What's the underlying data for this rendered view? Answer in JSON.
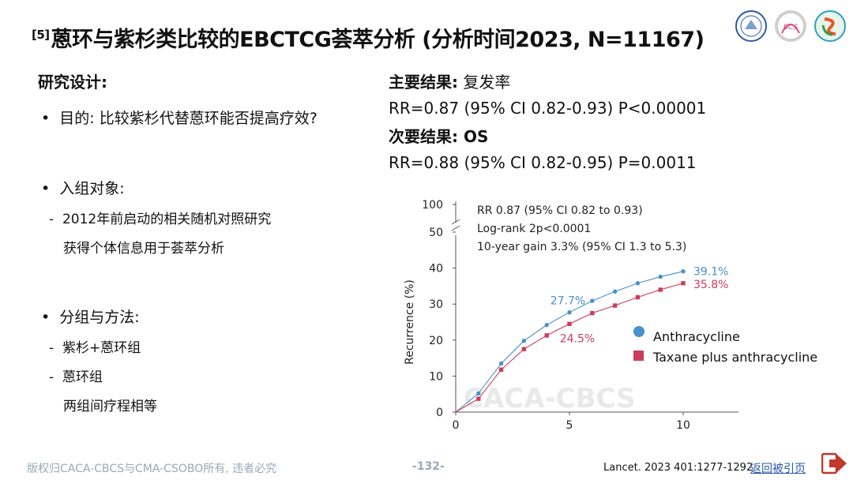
{
  "title": {
    "ref": "[5]",
    "text": "蒽环与紫杉类比较的EBCTCG荟萃分析 (分析时间2023, N=11167)"
  },
  "logos": [
    "university-logo",
    "bcs-logo",
    "caca-logo"
  ],
  "left": {
    "heading": "研究设计:",
    "purpose": "目的: 比较紫杉代替蒽环能否提高疗效?",
    "enrollment": "入组对象:",
    "enroll_sub1": "2012年前启动的相关随机对照研究",
    "enroll_sub2": "获得个体信息用于荟萃分析",
    "grouping": "分组与方法:",
    "group1": "紫杉+蒽环组",
    "group2": "蒽环组",
    "group_note": "两组间疗程相等"
  },
  "right": {
    "primary_label": "主要结果:",
    "primary_value": "复发率",
    "primary_rr": "RR=0.87 (95% CI 0.82-0.93) P<0.00001",
    "secondary_label": "次要结果: OS",
    "secondary_rr": "RR=0.88 (95% CI 0.82-0.95) P=0.0011"
  },
  "chart_data": {
    "type": "line",
    "ylabel": "Recurrence (%)",
    "xlabel": "",
    "xlim": [
      0,
      10
    ],
    "ylim": [
      0,
      50
    ],
    "x_ticks": [
      0,
      5,
      10
    ],
    "y_ticks": [
      0,
      10,
      20,
      30,
      40,
      50
    ],
    "y_break_label": "100",
    "annotations": [
      "RR 0.87 (95% CI 0.82 to 0.93)",
      "Log-rank 2p<0.0001",
      "10-year gain 3.3% (95% CI 1.3 to 5.3)"
    ],
    "data_labels": {
      "anthra_mid": "27.7%",
      "anthra_end": "39.1%",
      "taxane_mid": "24.5%",
      "taxane_end": "35.8%"
    },
    "watermark": "CACA-CBCS",
    "series": [
      {
        "name": "Anthracycline",
        "color": "#4a90c9",
        "marker": "circle",
        "x": [
          0,
          1,
          2,
          3,
          4,
          5,
          6,
          7,
          8,
          9,
          10
        ],
        "values": [
          0,
          5.2,
          13.5,
          19.8,
          24.2,
          27.7,
          30.9,
          33.5,
          35.8,
          37.6,
          39.1
        ]
      },
      {
        "name": "Taxane plus anthracycline",
        "color": "#cc3d5c",
        "marker": "square",
        "x": [
          0,
          1,
          2,
          3,
          4,
          5,
          6,
          7,
          8,
          9,
          10
        ],
        "values": [
          0,
          3.7,
          11.8,
          17.5,
          21.3,
          24.5,
          27.5,
          29.6,
          31.9,
          34.0,
          35.8
        ]
      }
    ]
  },
  "footer": {
    "copyright": "版权归CACA-CBCS与CMA-CSOBO所有, 违者必究",
    "page": "-132-",
    "citation": "Lancet. 2023 401:1277-1292",
    "back_link": "返回被引页"
  }
}
